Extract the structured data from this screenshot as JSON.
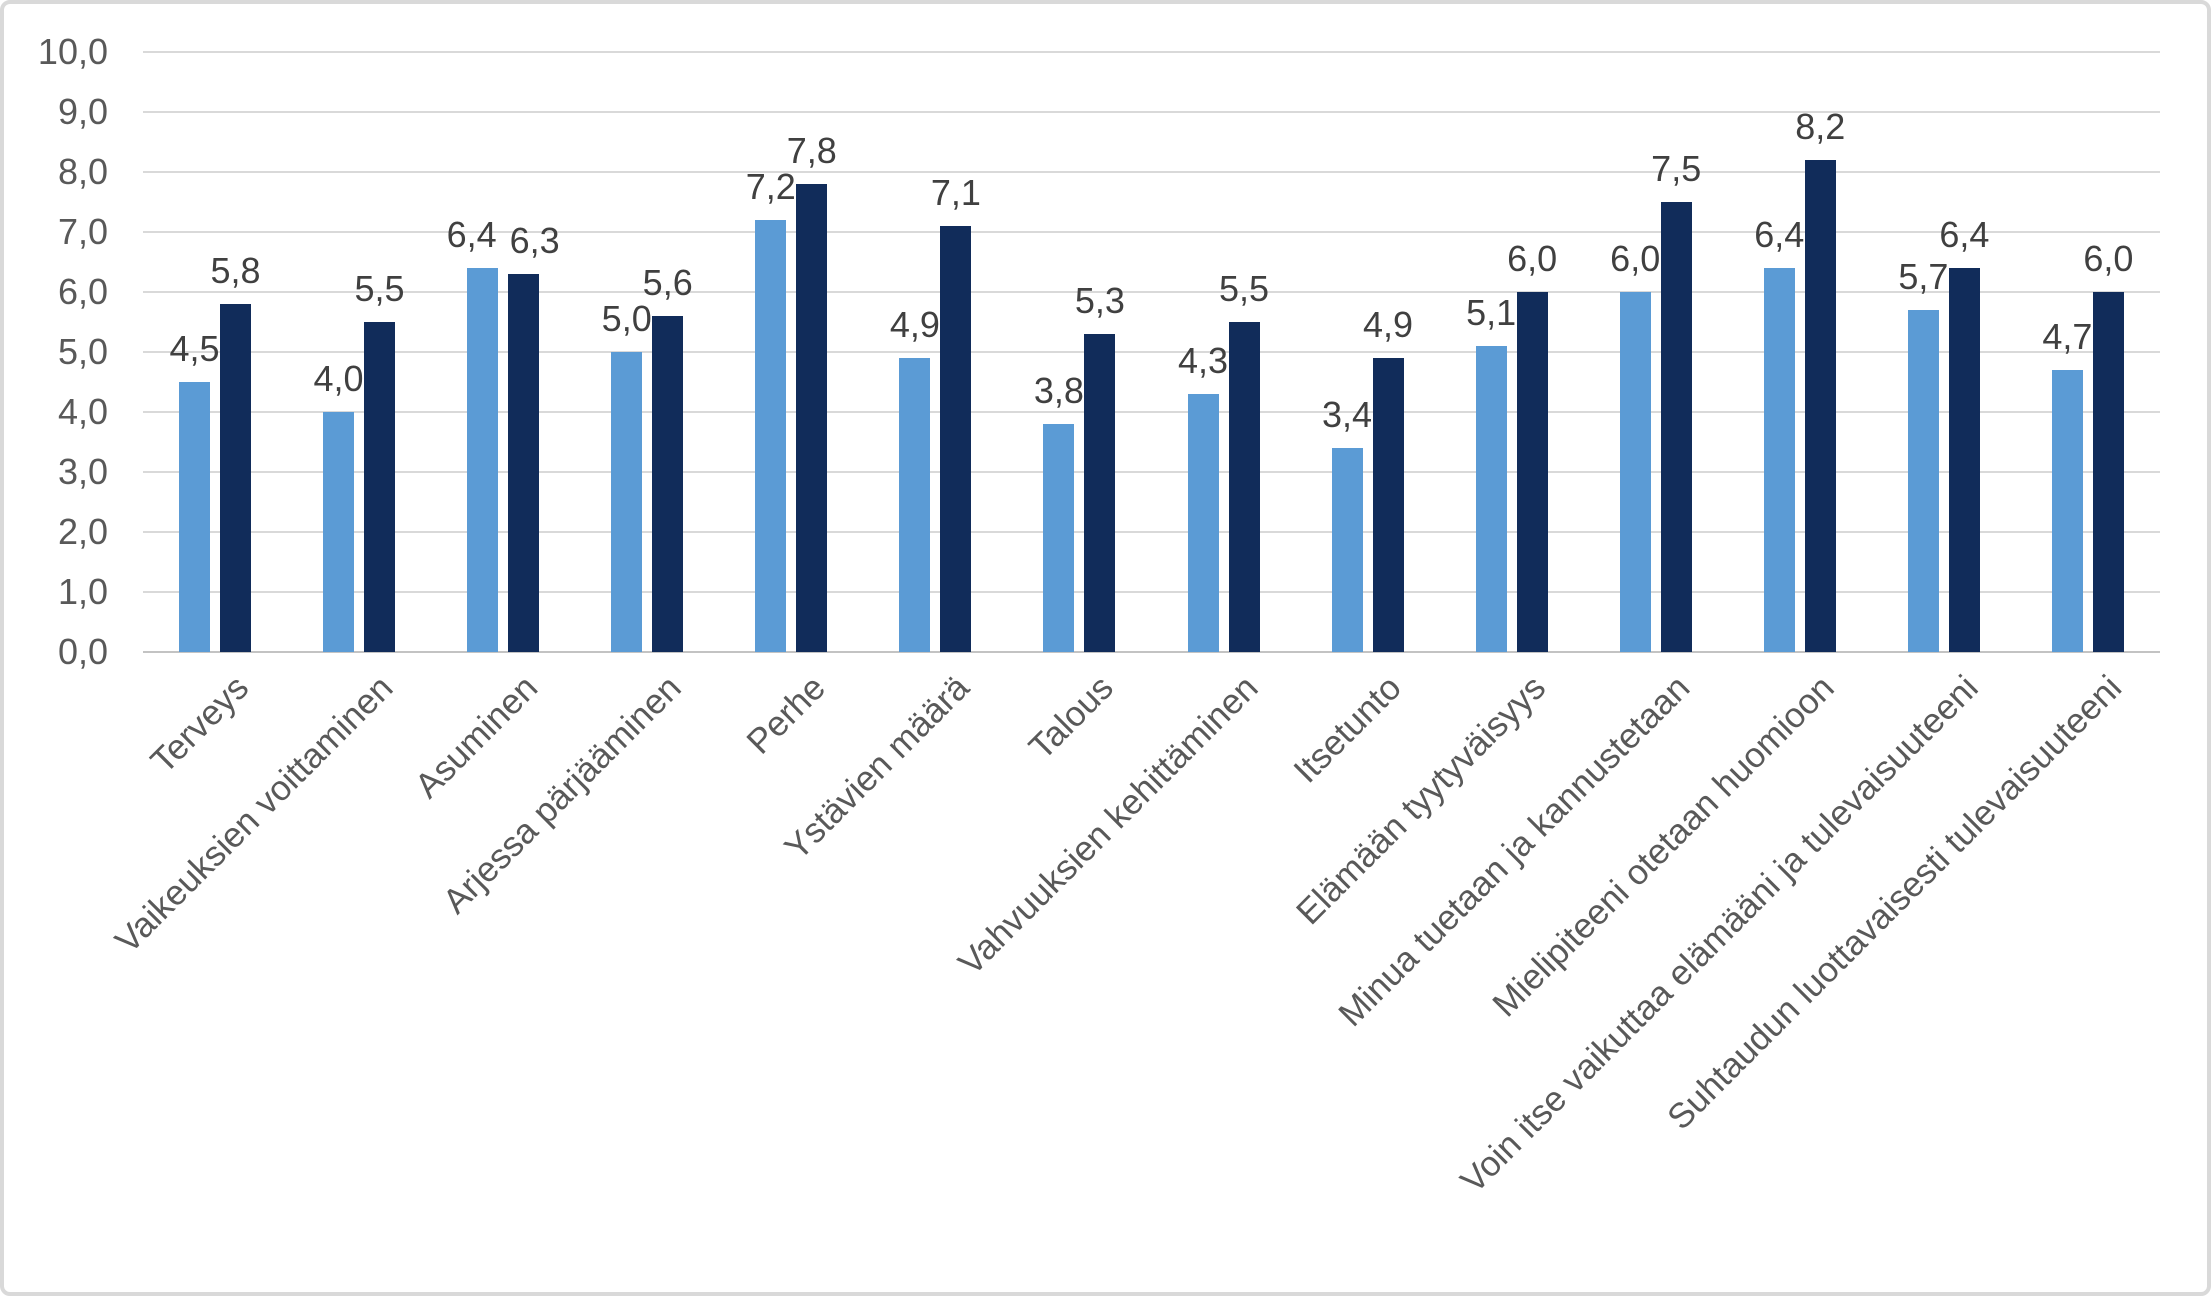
{
  "chart_data": {
    "type": "bar",
    "title": "",
    "categories": [
      "Terveys",
      "Vaikeuksien voittaminen",
      "Asuminen",
      "Arjessa pärjääminen",
      "Perhe",
      "Ystävien määrä",
      "Talous",
      "Vahvuuksien kehittäminen",
      "Itsetunto",
      "Elämään tyytyväisyys",
      "Minua tuetaan ja kannustetaan",
      "Mielipiteeni otetaan huomioon",
      "Voin itse vaikuttaa elämääni ja tulevaisuuteeni",
      "Suhtaudun luottavaisesti tulevaisuuteeni"
    ],
    "series": [
      {
        "name": "light-blue-series",
        "color": "#5B9BD5",
        "values": [
          4.5,
          4.0,
          6.4,
          5.0,
          7.2,
          4.9,
          3.8,
          4.3,
          3.4,
          5.1,
          6.0,
          6.4,
          5.7,
          4.7
        ]
      },
      {
        "name": "dark-navy-series",
        "color": "#112C5A",
        "values": [
          5.8,
          5.5,
          6.3,
          5.6,
          7.8,
          7.1,
          5.3,
          5.5,
          4.9,
          6.0,
          7.5,
          8.2,
          6.4,
          6.0
        ]
      }
    ],
    "value_labels": [
      [
        "4,5",
        "4,0",
        "6,4",
        "5,0",
        "7,2",
        "4,9",
        "3,8",
        "4,3",
        "3,4",
        "5,1",
        "6,0",
        "6,4",
        "5,7",
        "4,7"
      ],
      [
        "5,8",
        "5,5",
        "6,3",
        "5,6",
        "7,8",
        "7,1",
        "5,3",
        "5,5",
        "4,9",
        "6,0",
        "7,5",
        "8,2",
        "6,4",
        "6,0"
      ]
    ],
    "xlabel": "",
    "ylabel": "",
    "ylim": [
      0,
      10
    ],
    "ytick_step": 1,
    "ytick_labels": [
      "0,0",
      "1,0",
      "2,0",
      "3,0",
      "4,0",
      "5,0",
      "6,0",
      "7,0",
      "8,0",
      "9,0",
      "10,0"
    ],
    "decimal_separator": ",",
    "grid": true,
    "legend_position": "none"
  },
  "style": {
    "background": "#FFFFFF",
    "frame_border": "#D9D9D9",
    "gridline_color": "#D9D9D9",
    "axis_line_color": "#C3C3C3",
    "tick_text_color": "#595959",
    "value_text_color": "#404040",
    "category_text_color": "#595959"
  }
}
